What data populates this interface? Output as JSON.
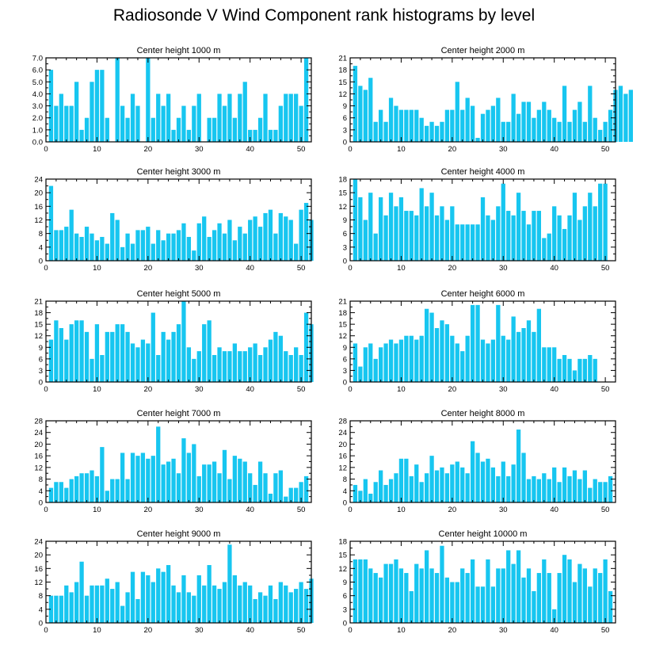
{
  "title": "Radiosonde V Wind Component rank histograms by level",
  "bar_color": "#17c6f0",
  "chart_data": [
    {
      "type": "bar",
      "title": "Center height 1000 m",
      "xlabel": "",
      "ylabel": "",
      "xlim": [
        0,
        52
      ],
      "xticks": [
        0,
        10,
        20,
        30,
        40,
        50
      ],
      "ylim": [
        0,
        7
      ],
      "yticks": [
        "0.0",
        "1.0",
        "2.0",
        "3.0",
        "4.0",
        "5.0",
        "6.0",
        "7.0"
      ],
      "values": [
        6,
        3,
        4,
        3,
        3,
        5,
        1,
        2,
        5,
        6,
        6,
        2,
        0,
        7,
        3,
        2,
        4,
        3,
        0,
        7,
        2,
        4,
        3,
        4,
        1,
        2,
        3,
        1,
        3,
        4,
        0,
        2,
        2,
        4,
        3,
        4,
        2,
        4,
        5,
        1,
        1,
        2,
        4,
        1,
        1,
        3,
        4,
        4,
        4,
        3,
        7
      ]
    },
    {
      "type": "bar",
      "title": "Center height 2000 m",
      "xlabel": "",
      "ylabel": "",
      "xlim": [
        0,
        52
      ],
      "xticks": [
        0,
        10,
        20,
        30,
        40,
        50
      ],
      "ylim": [
        0,
        21
      ],
      "yticks": [
        "0",
        "3",
        "6",
        "9",
        "12",
        "15",
        "18",
        "21"
      ],
      "values": [
        19,
        14,
        13,
        16,
        5,
        8,
        5,
        11,
        9,
        8,
        8,
        8,
        8,
        6,
        4,
        5,
        4,
        5,
        8,
        8,
        15,
        8,
        11,
        9,
        1,
        7,
        8,
        9,
        11,
        5,
        5,
        12,
        7,
        10,
        10,
        6,
        8,
        10,
        8,
        6,
        5,
        14,
        5,
        8,
        10,
        5,
        14,
        6,
        3,
        5,
        8,
        13,
        14,
        12,
        13
      ]
    },
    {
      "type": "bar",
      "title": "Center height 3000 m",
      "xlabel": "",
      "ylabel": "",
      "xlim": [
        0,
        52
      ],
      "xticks": [
        0,
        10,
        20,
        30,
        40,
        50
      ],
      "ylim": [
        0,
        24
      ],
      "yticks": [
        "0",
        "4",
        "8",
        "12",
        "16",
        "20",
        "24"
      ],
      "values": [
        22,
        9,
        9,
        10,
        15,
        8,
        7,
        10,
        8,
        6,
        7,
        5,
        14,
        12,
        4,
        8,
        5,
        9,
        9,
        10,
        5,
        9,
        6,
        8,
        8,
        9,
        11,
        7,
        3,
        11,
        13,
        7,
        9,
        11,
        8,
        12,
        6,
        10,
        8,
        12,
        13,
        10,
        14,
        15,
        8,
        14,
        13,
        12,
        5,
        15,
        17,
        12
      ]
    },
    {
      "type": "bar",
      "title": "Center height 4000 m",
      "xlabel": "",
      "ylabel": "",
      "xlim": [
        0,
        52
      ],
      "xticks": [
        0,
        10,
        20,
        30,
        40,
        50
      ],
      "ylim": [
        0,
        18
      ],
      "yticks": [
        "0",
        "3",
        "6",
        "9",
        "12",
        "15",
        "18"
      ],
      "values": [
        18,
        14,
        9,
        15,
        6,
        14,
        10,
        15,
        12,
        14,
        11,
        11,
        10,
        16,
        12,
        15,
        10,
        12,
        9,
        12,
        8,
        8,
        8,
        8,
        8,
        14,
        10,
        9,
        12,
        17,
        11,
        10,
        15,
        11,
        8,
        11,
        11,
        5,
        6,
        12,
        10,
        7,
        10,
        15,
        9,
        12,
        15,
        12,
        17,
        17
      ]
    },
    {
      "type": "bar",
      "title": "Center height 5000 m",
      "xlabel": "",
      "ylabel": "",
      "xlim": [
        0,
        52
      ],
      "xticks": [
        0,
        10,
        20,
        30,
        40,
        50
      ],
      "ylim": [
        0,
        21
      ],
      "yticks": [
        "0",
        "3",
        "6",
        "9",
        "12",
        "15",
        "18",
        "21"
      ],
      "values": [
        11,
        16,
        14,
        11,
        15,
        16,
        16,
        13,
        6,
        15,
        7,
        13,
        13,
        15,
        15,
        13,
        10,
        9,
        11,
        10,
        18,
        7,
        13,
        11,
        13,
        15,
        21,
        9,
        6,
        8,
        15,
        16,
        7,
        9,
        8,
        8,
        10,
        8,
        8,
        9,
        10,
        7,
        9,
        11,
        13,
        12,
        8,
        7,
        9,
        7,
        18,
        15
      ]
    },
    {
      "type": "bar",
      "title": "Center height 6000 m",
      "xlabel": "",
      "ylabel": "",
      "xlim": [
        0,
        52
      ],
      "xticks": [
        0,
        10,
        20,
        30,
        40,
        50
      ],
      "ylim": [
        0,
        21
      ],
      "yticks": [
        "0",
        "3",
        "6",
        "9",
        "12",
        "15",
        "18",
        "21"
      ],
      "values": [
        10,
        4,
        9,
        10,
        6,
        9,
        10,
        11,
        10,
        11,
        12,
        12,
        11,
        12,
        19,
        18,
        14,
        16,
        15,
        12,
        10,
        8,
        12,
        20,
        20,
        11,
        10,
        11,
        20,
        12,
        11,
        17,
        13,
        14,
        16,
        13,
        19,
        9,
        9,
        9,
        6,
        7,
        6,
        3,
        6,
        6,
        7,
        6
      ]
    },
    {
      "type": "bar",
      "title": "Center height 7000 m",
      "xlabel": "",
      "ylabel": "",
      "xlim": [
        0,
        52
      ],
      "xticks": [
        0,
        10,
        20,
        30,
        40,
        50
      ],
      "ylim": [
        0,
        28
      ],
      "yticks": [
        "0",
        "4",
        "8",
        "12",
        "16",
        "20",
        "24",
        "28"
      ],
      "values": [
        5,
        7,
        7,
        5,
        8,
        9,
        10,
        10,
        11,
        9,
        19,
        4,
        8,
        8,
        17,
        8,
        17,
        16,
        17,
        15,
        16,
        26,
        13,
        14,
        15,
        10,
        22,
        17,
        20,
        9,
        13,
        13,
        14,
        10,
        18,
        8,
        16,
        15,
        14,
        10,
        6,
        14,
        10,
        3,
        10,
        11,
        2,
        5,
        5,
        7,
        9
      ]
    },
    {
      "type": "bar",
      "title": "Center height 8000 m",
      "xlabel": "",
      "ylabel": "",
      "xlim": [
        0,
        52
      ],
      "xticks": [
        0,
        10,
        20,
        30,
        40,
        50
      ],
      "ylim": [
        0,
        28
      ],
      "yticks": [
        "0",
        "4",
        "8",
        "12",
        "16",
        "20",
        "24",
        "28"
      ],
      "values": [
        6,
        4,
        8,
        3,
        7,
        11,
        6,
        8,
        10,
        15,
        15,
        9,
        13,
        7,
        10,
        16,
        11,
        12,
        10,
        13,
        14,
        12,
        10,
        21,
        17,
        14,
        15,
        12,
        9,
        14,
        9,
        13,
        25,
        17,
        8,
        9,
        8,
        10,
        8,
        12,
        7,
        12,
        9,
        11,
        8,
        11,
        5,
        8,
        7,
        7,
        9
      ]
    },
    {
      "type": "bar",
      "title": "Center height 9000 m",
      "xlabel": "",
      "ylabel": "",
      "xlim": [
        0,
        52
      ],
      "xticks": [
        0,
        10,
        20,
        30,
        40,
        50
      ],
      "ylim": [
        0,
        24
      ],
      "yticks": [
        "0",
        "4",
        "8",
        "12",
        "16",
        "20",
        "24"
      ],
      "values": [
        8,
        8,
        8,
        11,
        9,
        12,
        18,
        8,
        11,
        11,
        11,
        13,
        10,
        12,
        5,
        9,
        15,
        7,
        15,
        14,
        12,
        16,
        15,
        17,
        11,
        9,
        14,
        9,
        8,
        14,
        11,
        17,
        11,
        10,
        12,
        23,
        14,
        11,
        12,
        11,
        7,
        9,
        8,
        11,
        7,
        12,
        11,
        9,
        10,
        12,
        10,
        13
      ]
    },
    {
      "type": "bar",
      "title": "Center height 10000 m",
      "xlabel": "",
      "ylabel": "",
      "xlim": [
        0,
        52
      ],
      "xticks": [
        0,
        10,
        20,
        30,
        40,
        50
      ],
      "ylim": [
        0,
        18
      ],
      "yticks": [
        "0",
        "3",
        "6",
        "9",
        "12",
        "15",
        "18"
      ],
      "values": [
        14,
        14,
        14,
        12,
        11,
        10,
        13,
        13,
        14,
        12,
        11,
        7,
        13,
        12,
        16,
        12,
        11,
        17,
        10,
        9,
        9,
        12,
        11,
        14,
        8,
        8,
        14,
        8,
        12,
        12,
        16,
        13,
        16,
        10,
        12,
        7,
        11,
        14,
        11,
        3,
        11,
        15,
        14,
        9,
        13,
        12,
        8,
        12,
        11,
        14,
        7
      ]
    }
  ]
}
